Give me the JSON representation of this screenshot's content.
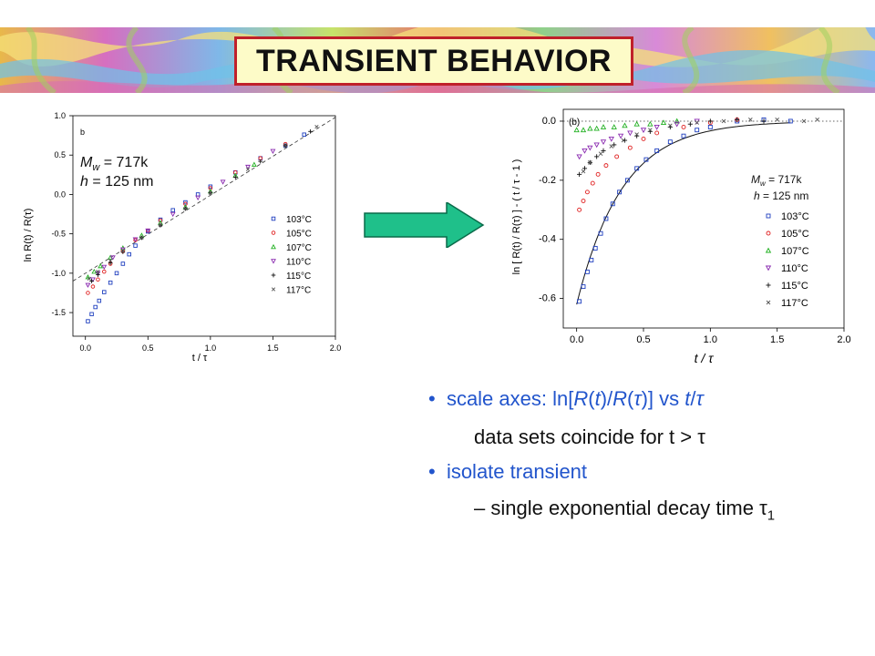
{
  "title": "TRANSIENT BEHAVIOR",
  "colors": {
    "title_border": "#c0202a",
    "title_fill": "#fdfbc8",
    "arrow_fill": "#1fc08a",
    "bullet_blue": "#2255cc",
    "series": [
      "#1f3fbf",
      "#e02020",
      "#20b020",
      "#8a2ab0",
      "#111111",
      "#555555"
    ]
  },
  "banner": {
    "description_icon": "wavy-rainbow-banner"
  },
  "arrow": {
    "icon": "right-arrow-icon"
  },
  "chart_data": [
    {
      "type": "scatter",
      "panel_label": "b",
      "annotation_line1": "M",
      "annotation_line1_sub": "w",
      "annotation_line1_rest": " = 717k",
      "annotation_line2_var": "h",
      "annotation_line2_rest": " = 125 nm",
      "xlabel": "t / τ",
      "ylabel": "ln R(t) / R(τ)",
      "xlim": [
        -0.1,
        2.0
      ],
      "ylim": [
        -1.8,
        1.0
      ],
      "xticks": [
        "0.0",
        "0.5",
        "1.0",
        "1.5",
        "2.0"
      ],
      "yticks": [
        "1.0",
        "0.5",
        "0.0",
        "-0.5",
        "-1.0",
        "-1.5"
      ],
      "fit_line": {
        "x": [
          -0.1,
          2.0
        ],
        "y": [
          -1.1,
          0.98
        ],
        "style": "dashed"
      },
      "series": [
        {
          "name": "103°C",
          "marker": "square",
          "points": [
            [
              0.02,
              -1.61
            ],
            [
              0.05,
              -1.52
            ],
            [
              0.08,
              -1.43
            ],
            [
              0.11,
              -1.35
            ],
            [
              0.15,
              -1.24
            ],
            [
              0.2,
              -1.12
            ],
            [
              0.25,
              -1.0
            ],
            [
              0.3,
              -0.88
            ],
            [
              0.35,
              -0.76
            ],
            [
              0.4,
              -0.65
            ],
            [
              0.5,
              -0.47
            ],
            [
              0.6,
              -0.32
            ],
            [
              0.7,
              -0.2
            ],
            [
              0.8,
              -0.1
            ],
            [
              0.9,
              0.0
            ],
            [
              1.0,
              0.1
            ],
            [
              1.2,
              0.28
            ],
            [
              1.4,
              0.46
            ],
            [
              1.6,
              0.62
            ],
            [
              1.75,
              0.76
            ]
          ]
        },
        {
          "name": "105°C",
          "marker": "circle",
          "points": [
            [
              0.02,
              -1.25
            ],
            [
              0.06,
              -1.17
            ],
            [
              0.1,
              -1.08
            ],
            [
              0.15,
              -0.98
            ],
            [
              0.2,
              -0.88
            ],
            [
              0.3,
              -0.72
            ],
            [
              0.4,
              -0.58
            ],
            [
              0.5,
              -0.46
            ],
            [
              0.6,
              -0.33
            ],
            [
              0.8,
              -0.12
            ],
            [
              1.0,
              0.08
            ],
            [
              1.2,
              0.28
            ],
            [
              1.4,
              0.46
            ],
            [
              1.6,
              0.64
            ]
          ]
        },
        {
          "name": "107°C",
          "marker": "triangle-up",
          "points": [
            [
              0.02,
              -1.05
            ],
            [
              0.07,
              -0.98
            ],
            [
              0.12,
              -0.91
            ],
            [
              0.2,
              -0.8
            ],
            [
              0.3,
              -0.68
            ],
            [
              0.45,
              -0.52
            ],
            [
              0.6,
              -0.36
            ],
            [
              0.8,
              -0.16
            ],
            [
              1.0,
              0.04
            ],
            [
              1.2,
              0.24
            ],
            [
              1.35,
              0.38
            ]
          ]
        },
        {
          "name": "110°C",
          "marker": "triangle-down",
          "points": [
            [
              0.02,
              -1.15
            ],
            [
              0.06,
              -1.08
            ],
            [
              0.1,
              -1.0
            ],
            [
              0.15,
              -0.92
            ],
            [
              0.22,
              -0.8
            ],
            [
              0.3,
              -0.7
            ],
            [
              0.4,
              -0.57
            ],
            [
              0.5,
              -0.46
            ],
            [
              0.7,
              -0.25
            ],
            [
              0.9,
              -0.04
            ],
            [
              1.1,
              0.16
            ],
            [
              1.3,
              0.35
            ],
            [
              1.5,
              0.55
            ]
          ]
        },
        {
          "name": "115°C",
          "marker": "plus",
          "points": [
            [
              0.05,
              -1.1
            ],
            [
              0.1,
              -1.02
            ],
            [
              0.2,
              -0.87
            ],
            [
              0.3,
              -0.73
            ],
            [
              0.45,
              -0.55
            ],
            [
              0.6,
              -0.39
            ],
            [
              0.8,
              -0.18
            ],
            [
              1.0,
              0.02
            ],
            [
              1.2,
              0.22
            ],
            [
              1.4,
              0.42
            ],
            [
              1.6,
              0.62
            ],
            [
              1.8,
              0.8
            ]
          ]
        },
        {
          "name": "117°C",
          "marker": "cross",
          "points": [
            [
              0.03,
              -1.07
            ],
            [
              0.1,
              -0.98
            ],
            [
              0.2,
              -0.84
            ],
            [
              0.3,
              -0.72
            ],
            [
              0.45,
              -0.55
            ],
            [
              0.6,
              -0.39
            ],
            [
              0.8,
              -0.18
            ],
            [
              1.0,
              0.02
            ],
            [
              1.3,
              0.32
            ],
            [
              1.6,
              0.62
            ],
            [
              1.85,
              0.86
            ]
          ]
        }
      ]
    },
    {
      "type": "scatter",
      "panel_label": "(b)",
      "annotation_line1": "M",
      "annotation_line1_sub": "w",
      "annotation_line1_rest": " = 717k",
      "annotation_line2_var": "h",
      "annotation_line2_rest": " = 125 nm",
      "xlabel": "t / τ",
      "ylabel": "ln [ R(t) / R(τ) ] - ( t / τ - 1 )",
      "xlim": [
        -0.1,
        2.0
      ],
      "ylim": [
        -0.7,
        0.04
      ],
      "xticks": [
        "0.0",
        "0.5",
        "1.0",
        "1.5",
        "2.0"
      ],
      "yticks": [
        "0.0",
        "-0.2",
        "-0.4",
        "-0.6"
      ],
      "zero_line": {
        "y": 0.0,
        "style": "dotted"
      },
      "fit_curve": {
        "amplitude": -0.62,
        "decay": 0.34,
        "x_range": [
          0.0,
          1.6
        ],
        "style": "solid"
      },
      "series": [
        {
          "name": "103°C",
          "marker": "square",
          "points": [
            [
              0.02,
              -0.61
            ],
            [
              0.05,
              -0.56
            ],
            [
              0.08,
              -0.51
            ],
            [
              0.11,
              -0.47
            ],
            [
              0.14,
              -0.43
            ],
            [
              0.18,
              -0.38
            ],
            [
              0.22,
              -0.33
            ],
            [
              0.27,
              -0.28
            ],
            [
              0.32,
              -0.24
            ],
            [
              0.38,
              -0.2
            ],
            [
              0.45,
              -0.16
            ],
            [
              0.52,
              -0.13
            ],
            [
              0.6,
              -0.1
            ],
            [
              0.7,
              -0.07
            ],
            [
              0.8,
              -0.05
            ],
            [
              0.9,
              -0.03
            ],
            [
              1.0,
              -0.02
            ],
            [
              1.2,
              0.0
            ],
            [
              1.4,
              0.005
            ],
            [
              1.6,
              0.0
            ]
          ]
        },
        {
          "name": "105°C",
          "marker": "circle",
          "points": [
            [
              0.02,
              -0.3
            ],
            [
              0.05,
              -0.27
            ],
            [
              0.08,
              -0.24
            ],
            [
              0.12,
              -0.21
            ],
            [
              0.16,
              -0.18
            ],
            [
              0.22,
              -0.15
            ],
            [
              0.3,
              -0.12
            ],
            [
              0.4,
              -0.09
            ],
            [
              0.5,
              -0.06
            ],
            [
              0.6,
              -0.04
            ],
            [
              0.8,
              -0.02
            ],
            [
              1.0,
              -0.005
            ],
            [
              1.2,
              0.005
            ]
          ]
        },
        {
          "name": "107°C",
          "marker": "triangle-up",
          "points": [
            [
              0.0,
              -0.03
            ],
            [
              0.05,
              -0.03
            ],
            [
              0.1,
              -0.025
            ],
            [
              0.15,
              -0.025
            ],
            [
              0.2,
              -0.02
            ],
            [
              0.28,
              -0.02
            ],
            [
              0.36,
              -0.015
            ],
            [
              0.45,
              -0.01
            ],
            [
              0.55,
              -0.01
            ],
            [
              0.65,
              -0.005
            ],
            [
              0.75,
              0.0
            ]
          ]
        },
        {
          "name": "110°C",
          "marker": "triangle-down",
          "points": [
            [
              0.02,
              -0.12
            ],
            [
              0.06,
              -0.1
            ],
            [
              0.1,
              -0.09
            ],
            [
              0.15,
              -0.08
            ],
            [
              0.2,
              -0.07
            ],
            [
              0.26,
              -0.06
            ],
            [
              0.33,
              -0.05
            ],
            [
              0.4,
              -0.04
            ],
            [
              0.5,
              -0.03
            ],
            [
              0.6,
              -0.02
            ],
            [
              0.75,
              -0.01
            ],
            [
              0.9,
              0.0
            ]
          ]
        },
        {
          "name": "115°C",
          "marker": "plus",
          "points": [
            [
              0.02,
              -0.18
            ],
            [
              0.06,
              -0.16
            ],
            [
              0.1,
              -0.14
            ],
            [
              0.15,
              -0.12
            ],
            [
              0.2,
              -0.1
            ],
            [
              0.28,
              -0.08
            ],
            [
              0.36,
              -0.065
            ],
            [
              0.45,
              -0.05
            ],
            [
              0.55,
              -0.035
            ],
            [
              0.7,
              -0.02
            ],
            [
              0.85,
              -0.01
            ],
            [
              1.0,
              0.0
            ],
            [
              1.2,
              0.005
            ],
            [
              1.4,
              0.0
            ]
          ]
        },
        {
          "name": "117°C",
          "marker": "cross",
          "points": [
            [
              0.05,
              -0.17
            ],
            [
              0.1,
              -0.14
            ],
            [
              0.18,
              -0.11
            ],
            [
              0.26,
              -0.085
            ],
            [
              0.35,
              -0.065
            ],
            [
              0.45,
              -0.045
            ],
            [
              0.55,
              -0.03
            ],
            [
              0.7,
              -0.015
            ],
            [
              0.9,
              -0.005
            ],
            [
              1.1,
              0.0
            ],
            [
              1.3,
              0.005
            ],
            [
              1.5,
              0.005
            ],
            [
              1.7,
              0.0
            ],
            [
              1.8,
              0.005
            ]
          ]
        }
      ]
    }
  ],
  "bullets": {
    "b1_text": "scale axes: ln[",
    "b1_R1": "R",
    "b1_t1": "(",
    "b1_t": "t",
    "b1_t2": ")/",
    "b1_R2": "R",
    "b1_t3": "(",
    "b1_tau": "τ",
    "b1_t4": ")] vs ",
    "b1_tvar": "t",
    "b1_slash": "/",
    "b1_tau2": "τ",
    "b2_symbol": "",
    "b2_text": " data sets coincide for t > ",
    "b2_tau": "τ",
    "b3_text": "isolate transient",
    "b4_text": "– single exponential decay time ",
    "b4_tau": "τ",
    "b4_sub": "1"
  }
}
